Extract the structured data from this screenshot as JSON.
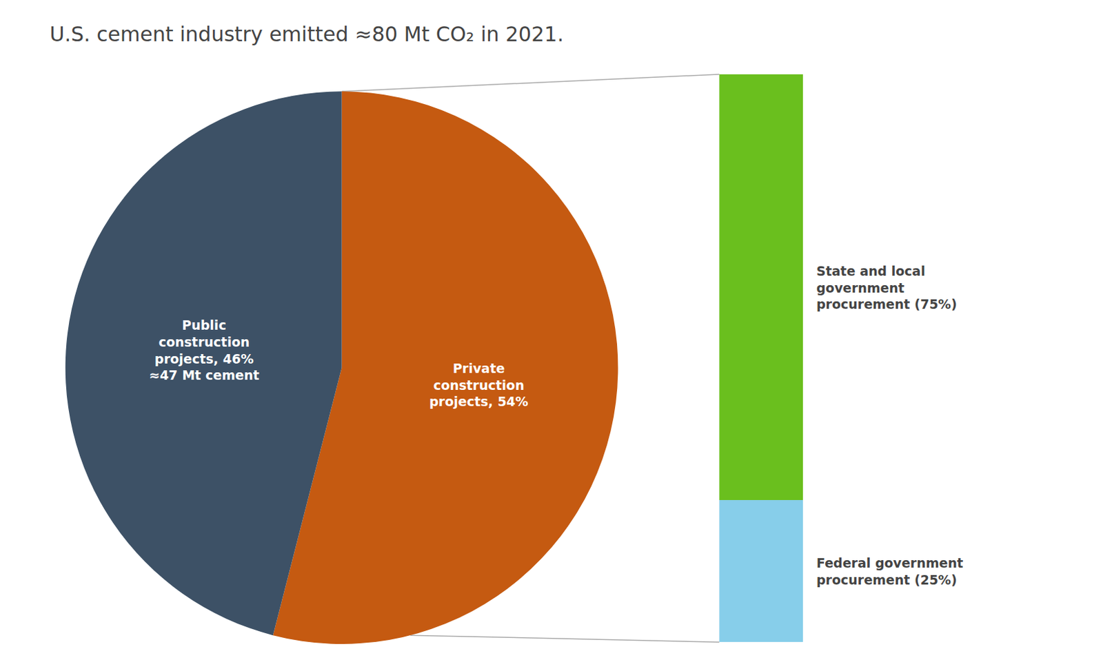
{
  "chart_data": [
    {
      "type": "pie",
      "title": "U.S. cement industry emitted ≈80 Mt CO₂ in 2021.",
      "categories": [
        "Private\nconstruction\nprojects, 54%",
        "Public\nconstruction\nprojects, 46%\n≈47 Mt cement"
      ],
      "values": [
        54,
        46
      ],
      "colors": [
        "#c55a11",
        "#3d5166"
      ]
    },
    {
      "type": "bar",
      "stacked": true,
      "categories": [
        null
      ],
      "series": [
        {
          "name": "State and local\ngovernment\nprocurement (75%)",
          "color": "#6abf1e",
          "values": [
            75
          ]
        },
        {
          "name": "Federal government\nprocurement (25%)",
          "color": "#87ceea",
          "values": [
            25
          ]
        }
      ],
      "ylim": [
        0,
        100
      ],
      "tick_labels": false,
      "grid": false
    }
  ]
}
